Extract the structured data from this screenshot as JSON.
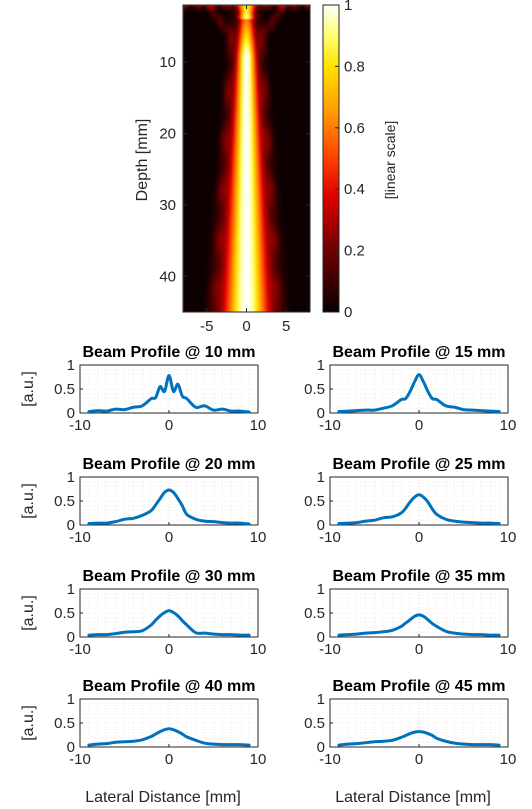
{
  "chart_data": [
    {
      "type": "heatmap",
      "title": "",
      "xlabel": "",
      "ylabel": "Depth [mm]",
      "x_range": [
        -8,
        8
      ],
      "y_range": [
        2,
        45
      ],
      "xticks": [
        "-5",
        "0",
        "5"
      ],
      "yticks": [
        "10",
        "20",
        "30",
        "40"
      ],
      "colorbar": {
        "label": "[linear scale]",
        "ticks": [
          "0",
          "0.2",
          "0.4",
          "0.6",
          "0.8",
          "1"
        ],
        "colormap": "hot"
      }
    },
    {
      "type": "line",
      "title": "Beam Profile @ 10 mm",
      "ylabel": "[a.u.]",
      "xlim": [
        -10,
        10
      ],
      "ylim": [
        0,
        1
      ],
      "xticks": [
        "-10",
        "0",
        "10"
      ],
      "yticks": [
        "0",
        "0.5",
        "1"
      ],
      "grid": true,
      "x": [
        -9,
        -8,
        -7,
        -6,
        -5,
        -4,
        -3,
        -2,
        -1.5,
        -1,
        -0.5,
        0,
        0.5,
        1,
        1.5,
        2,
        3,
        4,
        5,
        6,
        7,
        8,
        9
      ],
      "y": [
        0.03,
        0.05,
        0.04,
        0.08,
        0.07,
        0.12,
        0.15,
        0.3,
        0.32,
        0.55,
        0.45,
        0.78,
        0.45,
        0.6,
        0.35,
        0.3,
        0.12,
        0.15,
        0.06,
        0.08,
        0.04,
        0.04,
        0.02
      ],
      "color": "#0072BD"
    },
    {
      "type": "line",
      "title": "Beam Profile @ 15 mm",
      "ylabel": "",
      "xlim": [
        -10,
        10
      ],
      "ylim": [
        0,
        1
      ],
      "xticks": [
        "-10",
        "0",
        "10"
      ],
      "yticks": [
        "0",
        "0.5",
        "1"
      ],
      "grid": true,
      "x": [
        -9,
        -8,
        -7,
        -6,
        -5,
        -4,
        -3,
        -2,
        -1.5,
        -1,
        -0.5,
        0,
        0.5,
        1,
        1.5,
        2,
        3,
        4,
        5,
        6,
        7,
        8,
        9
      ],
      "y": [
        0.03,
        0.04,
        0.05,
        0.06,
        0.06,
        0.1,
        0.15,
        0.28,
        0.3,
        0.45,
        0.65,
        0.8,
        0.65,
        0.45,
        0.3,
        0.28,
        0.15,
        0.12,
        0.07,
        0.06,
        0.05,
        0.04,
        0.03
      ],
      "color": "#0072BD"
    },
    {
      "type": "line",
      "title": "Beam Profile @ 20 mm",
      "ylabel": "[a.u.]",
      "xlim": [
        -10,
        10
      ],
      "ylim": [
        0,
        1
      ],
      "xticks": [
        "-10",
        "0",
        "10"
      ],
      "yticks": [
        "0",
        "0.5",
        "1"
      ],
      "grid": true,
      "x": [
        -9,
        -8,
        -7,
        -6,
        -5,
        -4,
        -3,
        -2,
        -1.5,
        -1,
        -0.5,
        0,
        0.5,
        1,
        1.5,
        2,
        3,
        4,
        5,
        6,
        7,
        8,
        9
      ],
      "y": [
        0.03,
        0.04,
        0.04,
        0.07,
        0.12,
        0.14,
        0.2,
        0.3,
        0.42,
        0.55,
        0.68,
        0.73,
        0.68,
        0.55,
        0.4,
        0.22,
        0.12,
        0.08,
        0.07,
        0.05,
        0.04,
        0.04,
        0.02
      ],
      "color": "#0072BD"
    },
    {
      "type": "line",
      "title": "Beam Profile @ 25 mm",
      "ylabel": "",
      "xlim": [
        -10,
        10
      ],
      "ylim": [
        0,
        1
      ],
      "xticks": [
        "-10",
        "0",
        "10"
      ],
      "yticks": [
        "0",
        "0.5",
        "1"
      ],
      "grid": true,
      "x": [
        -9,
        -8,
        -7,
        -6,
        -5,
        -4,
        -3,
        -2,
        -1.5,
        -1,
        -0.5,
        0,
        0.5,
        1,
        1.5,
        2,
        3,
        4,
        5,
        6,
        7,
        8,
        9
      ],
      "y": [
        0.03,
        0.04,
        0.05,
        0.08,
        0.1,
        0.15,
        0.17,
        0.25,
        0.35,
        0.48,
        0.58,
        0.63,
        0.58,
        0.48,
        0.33,
        0.22,
        0.12,
        0.08,
        0.06,
        0.05,
        0.04,
        0.04,
        0.03
      ],
      "color": "#0072BD"
    },
    {
      "type": "line",
      "title": "Beam Profile @ 30 mm",
      "ylabel": "[a.u.]",
      "xlim": [
        -10,
        10
      ],
      "ylim": [
        0,
        1
      ],
      "xticks": [
        "-10",
        "0",
        "10"
      ],
      "yticks": [
        "0",
        "0.5",
        "1"
      ],
      "grid": true,
      "x": [
        -9,
        -8,
        -7,
        -6,
        -5,
        -4,
        -3,
        -2,
        -1.5,
        -1,
        -0.5,
        0,
        0.5,
        1,
        1.5,
        2,
        3,
        4,
        5,
        6,
        7,
        8,
        9
      ],
      "y": [
        0.04,
        0.05,
        0.05,
        0.07,
        0.1,
        0.11,
        0.13,
        0.25,
        0.35,
        0.44,
        0.51,
        0.55,
        0.51,
        0.44,
        0.34,
        0.25,
        0.09,
        0.08,
        0.06,
        0.05,
        0.05,
        0.04,
        0.04
      ],
      "color": "#0072BD"
    },
    {
      "type": "line",
      "title": "Beam Profile @ 35 mm",
      "ylabel": "",
      "xlim": [
        -10,
        10
      ],
      "ylim": [
        0,
        1
      ],
      "xticks": [
        "-10",
        "0",
        "10"
      ],
      "yticks": [
        "0",
        "0.5",
        "1"
      ],
      "grid": true,
      "x": [
        -9,
        -8,
        -7,
        -6,
        -5,
        -4,
        -3,
        -2,
        -1.5,
        -1,
        -0.5,
        0,
        0.5,
        1,
        1.5,
        2,
        3,
        4,
        5,
        6,
        7,
        8,
        9
      ],
      "y": [
        0.04,
        0.05,
        0.06,
        0.08,
        0.09,
        0.11,
        0.14,
        0.22,
        0.29,
        0.36,
        0.43,
        0.46,
        0.43,
        0.36,
        0.28,
        0.22,
        0.12,
        0.08,
        0.06,
        0.05,
        0.05,
        0.04,
        0.04
      ],
      "color": "#0072BD"
    },
    {
      "type": "line",
      "title": "Beam Profile @ 40 mm",
      "ylabel": "[a.u.]",
      "xlim": [
        -10,
        10
      ],
      "ylim": [
        0,
        1
      ],
      "xticks": [
        "-10",
        "0",
        "10"
      ],
      "yticks": [
        "0",
        "0.5",
        "1"
      ],
      "grid": true,
      "x": [
        -9,
        -8,
        -7,
        -6,
        -5,
        -4,
        -3,
        -2,
        -1.5,
        -1,
        -0.5,
        0,
        0.5,
        1,
        1.5,
        2,
        3,
        4,
        5,
        6,
        7,
        8,
        9
      ],
      "y": [
        0.04,
        0.06,
        0.07,
        0.1,
        0.11,
        0.12,
        0.15,
        0.22,
        0.27,
        0.32,
        0.36,
        0.38,
        0.36,
        0.32,
        0.27,
        0.21,
        0.14,
        0.08,
        0.06,
        0.05,
        0.05,
        0.05,
        0.04
      ],
      "color": "#0072BD"
    },
    {
      "type": "line",
      "title": "Beam Profile @ 45 mm",
      "ylabel": "",
      "xlim": [
        -10,
        10
      ],
      "ylim": [
        0,
        1
      ],
      "xticks": [
        "-10",
        "0",
        "10"
      ],
      "yticks": [
        "0",
        "0.5",
        "1"
      ],
      "grid": true,
      "x": [
        -9,
        -8,
        -7,
        -6,
        -5,
        -4,
        -3,
        -2,
        -1.5,
        -1,
        -0.5,
        0,
        0.5,
        1,
        1.5,
        2,
        3,
        4,
        5,
        6,
        7,
        8,
        9
      ],
      "y": [
        0.04,
        0.06,
        0.07,
        0.09,
        0.11,
        0.12,
        0.14,
        0.2,
        0.24,
        0.28,
        0.31,
        0.32,
        0.31,
        0.28,
        0.24,
        0.18,
        0.12,
        0.08,
        0.06,
        0.05,
        0.05,
        0.05,
        0.04
      ],
      "color": "#0072BD"
    }
  ],
  "bottom_xlabels": [
    "Lateral Distance [mm]",
    "Lateral Distance [mm]"
  ]
}
